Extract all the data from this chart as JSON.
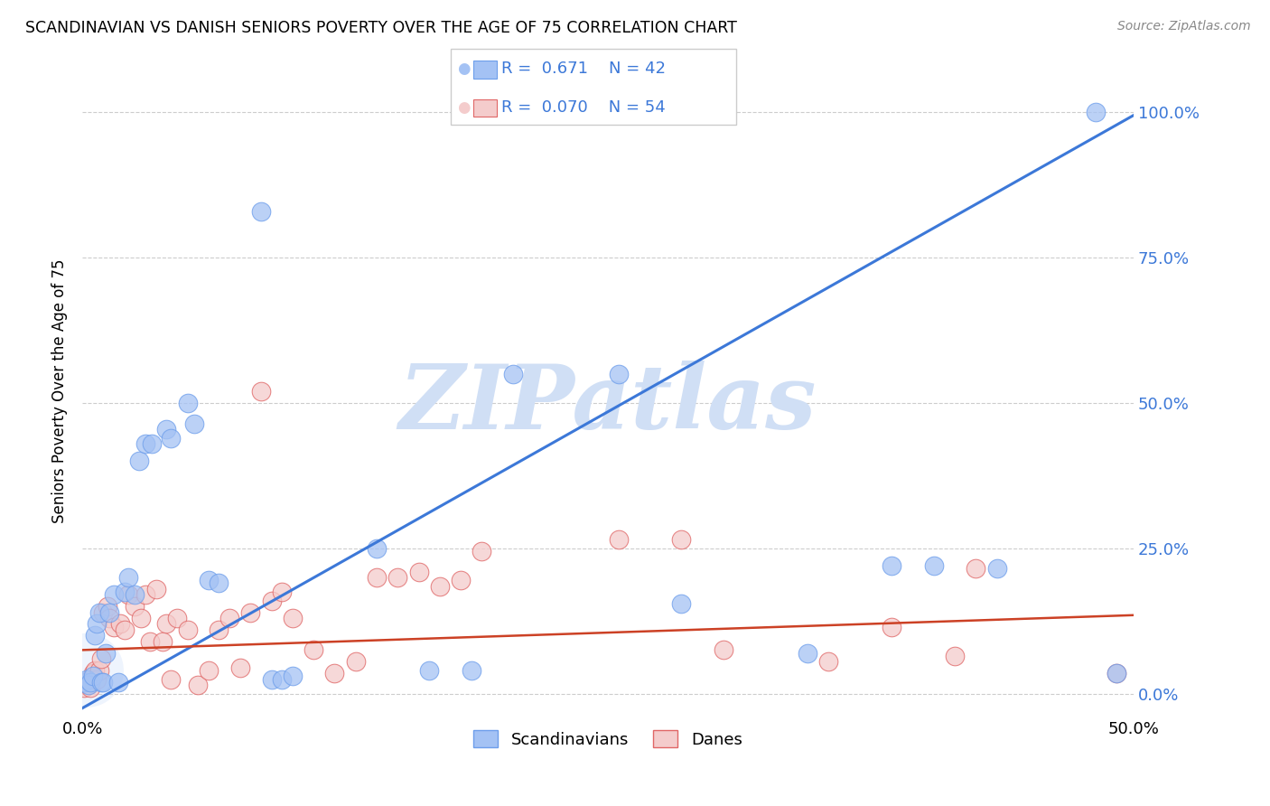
{
  "title": "SCANDINAVIAN VS DANISH SENIORS POVERTY OVER THE AGE OF 75 CORRELATION CHART",
  "source": "Source: ZipAtlas.com",
  "ylabel": "Seniors Poverty Over the Age of 75",
  "xlim": [
    0.0,
    0.5
  ],
  "ylim": [
    -0.04,
    1.08
  ],
  "yticks": [
    0.0,
    0.25,
    0.5,
    0.75,
    1.0
  ],
  "ytick_labels": [
    "0.0%",
    "25.0%",
    "50.0%",
    "75.0%",
    "100.0%"
  ],
  "xticks": [
    0.0,
    0.1,
    0.2,
    0.3,
    0.4,
    0.5
  ],
  "xtick_labels": [
    "0.0%",
    "",
    "",
    "",
    "",
    "50.0%"
  ],
  "background_color": "#ffffff",
  "grid_color": "#c8c8c8",
  "scand_color": "#a4c2f4",
  "danes_color": "#f4cccc",
  "scand_edge_color": "#6d9eeb",
  "danes_edge_color": "#e06666",
  "scand_line_color": "#3c78d8",
  "danes_line_color": "#cc4125",
  "watermark": "ZIPatlas",
  "watermark_color": "#d0dff5",
  "blue_text_color": "#3c78d8",
  "scand_line": [
    0.0,
    -0.025,
    0.5,
    0.995
  ],
  "danes_line": [
    0.0,
    0.075,
    0.5,
    0.135
  ],
  "scand_data": [
    [
      0.001,
      0.02
    ],
    [
      0.002,
      0.025
    ],
    [
      0.003,
      0.015
    ],
    [
      0.004,
      0.02
    ],
    [
      0.005,
      0.03
    ],
    [
      0.006,
      0.1
    ],
    [
      0.007,
      0.12
    ],
    [
      0.008,
      0.14
    ],
    [
      0.009,
      0.02
    ],
    [
      0.01,
      0.02
    ],
    [
      0.011,
      0.07
    ],
    [
      0.013,
      0.14
    ],
    [
      0.015,
      0.17
    ],
    [
      0.017,
      0.02
    ],
    [
      0.02,
      0.175
    ],
    [
      0.022,
      0.2
    ],
    [
      0.025,
      0.17
    ],
    [
      0.027,
      0.4
    ],
    [
      0.03,
      0.43
    ],
    [
      0.033,
      0.43
    ],
    [
      0.04,
      0.455
    ],
    [
      0.042,
      0.44
    ],
    [
      0.05,
      0.5
    ],
    [
      0.053,
      0.465
    ],
    [
      0.06,
      0.195
    ],
    [
      0.065,
      0.19
    ],
    [
      0.085,
      0.83
    ],
    [
      0.09,
      0.025
    ],
    [
      0.095,
      0.025
    ],
    [
      0.1,
      0.03
    ],
    [
      0.14,
      0.25
    ],
    [
      0.165,
      0.04
    ],
    [
      0.185,
      0.04
    ],
    [
      0.205,
      0.55
    ],
    [
      0.255,
      0.55
    ],
    [
      0.285,
      0.155
    ],
    [
      0.345,
      0.07
    ],
    [
      0.385,
      0.22
    ],
    [
      0.405,
      0.22
    ],
    [
      0.435,
      0.215
    ],
    [
      0.482,
      1.0
    ],
    [
      0.492,
      0.035
    ]
  ],
  "danes_data": [
    [
      0.001,
      0.01
    ],
    [
      0.002,
      0.02
    ],
    [
      0.003,
      0.015
    ],
    [
      0.004,
      0.01
    ],
    [
      0.005,
      0.035
    ],
    [
      0.006,
      0.04
    ],
    [
      0.007,
      0.025
    ],
    [
      0.008,
      0.04
    ],
    [
      0.009,
      0.06
    ],
    [
      0.01,
      0.14
    ],
    [
      0.012,
      0.15
    ],
    [
      0.013,
      0.13
    ],
    [
      0.015,
      0.115
    ],
    [
      0.018,
      0.12
    ],
    [
      0.02,
      0.11
    ],
    [
      0.022,
      0.17
    ],
    [
      0.025,
      0.15
    ],
    [
      0.028,
      0.13
    ],
    [
      0.03,
      0.17
    ],
    [
      0.032,
      0.09
    ],
    [
      0.035,
      0.18
    ],
    [
      0.038,
      0.09
    ],
    [
      0.04,
      0.12
    ],
    [
      0.042,
      0.025
    ],
    [
      0.045,
      0.13
    ],
    [
      0.05,
      0.11
    ],
    [
      0.055,
      0.015
    ],
    [
      0.06,
      0.04
    ],
    [
      0.065,
      0.11
    ],
    [
      0.07,
      0.13
    ],
    [
      0.075,
      0.045
    ],
    [
      0.08,
      0.14
    ],
    [
      0.085,
      0.52
    ],
    [
      0.09,
      0.16
    ],
    [
      0.095,
      0.175
    ],
    [
      0.1,
      0.13
    ],
    [
      0.11,
      0.075
    ],
    [
      0.12,
      0.035
    ],
    [
      0.13,
      0.055
    ],
    [
      0.14,
      0.2
    ],
    [
      0.15,
      0.2
    ],
    [
      0.16,
      0.21
    ],
    [
      0.17,
      0.185
    ],
    [
      0.18,
      0.195
    ],
    [
      0.19,
      0.245
    ],
    [
      0.255,
      0.265
    ],
    [
      0.285,
      0.265
    ],
    [
      0.305,
      0.075
    ],
    [
      0.355,
      0.055
    ],
    [
      0.385,
      0.115
    ],
    [
      0.415,
      0.065
    ],
    [
      0.425,
      0.215
    ],
    [
      0.492,
      0.035
    ]
  ]
}
